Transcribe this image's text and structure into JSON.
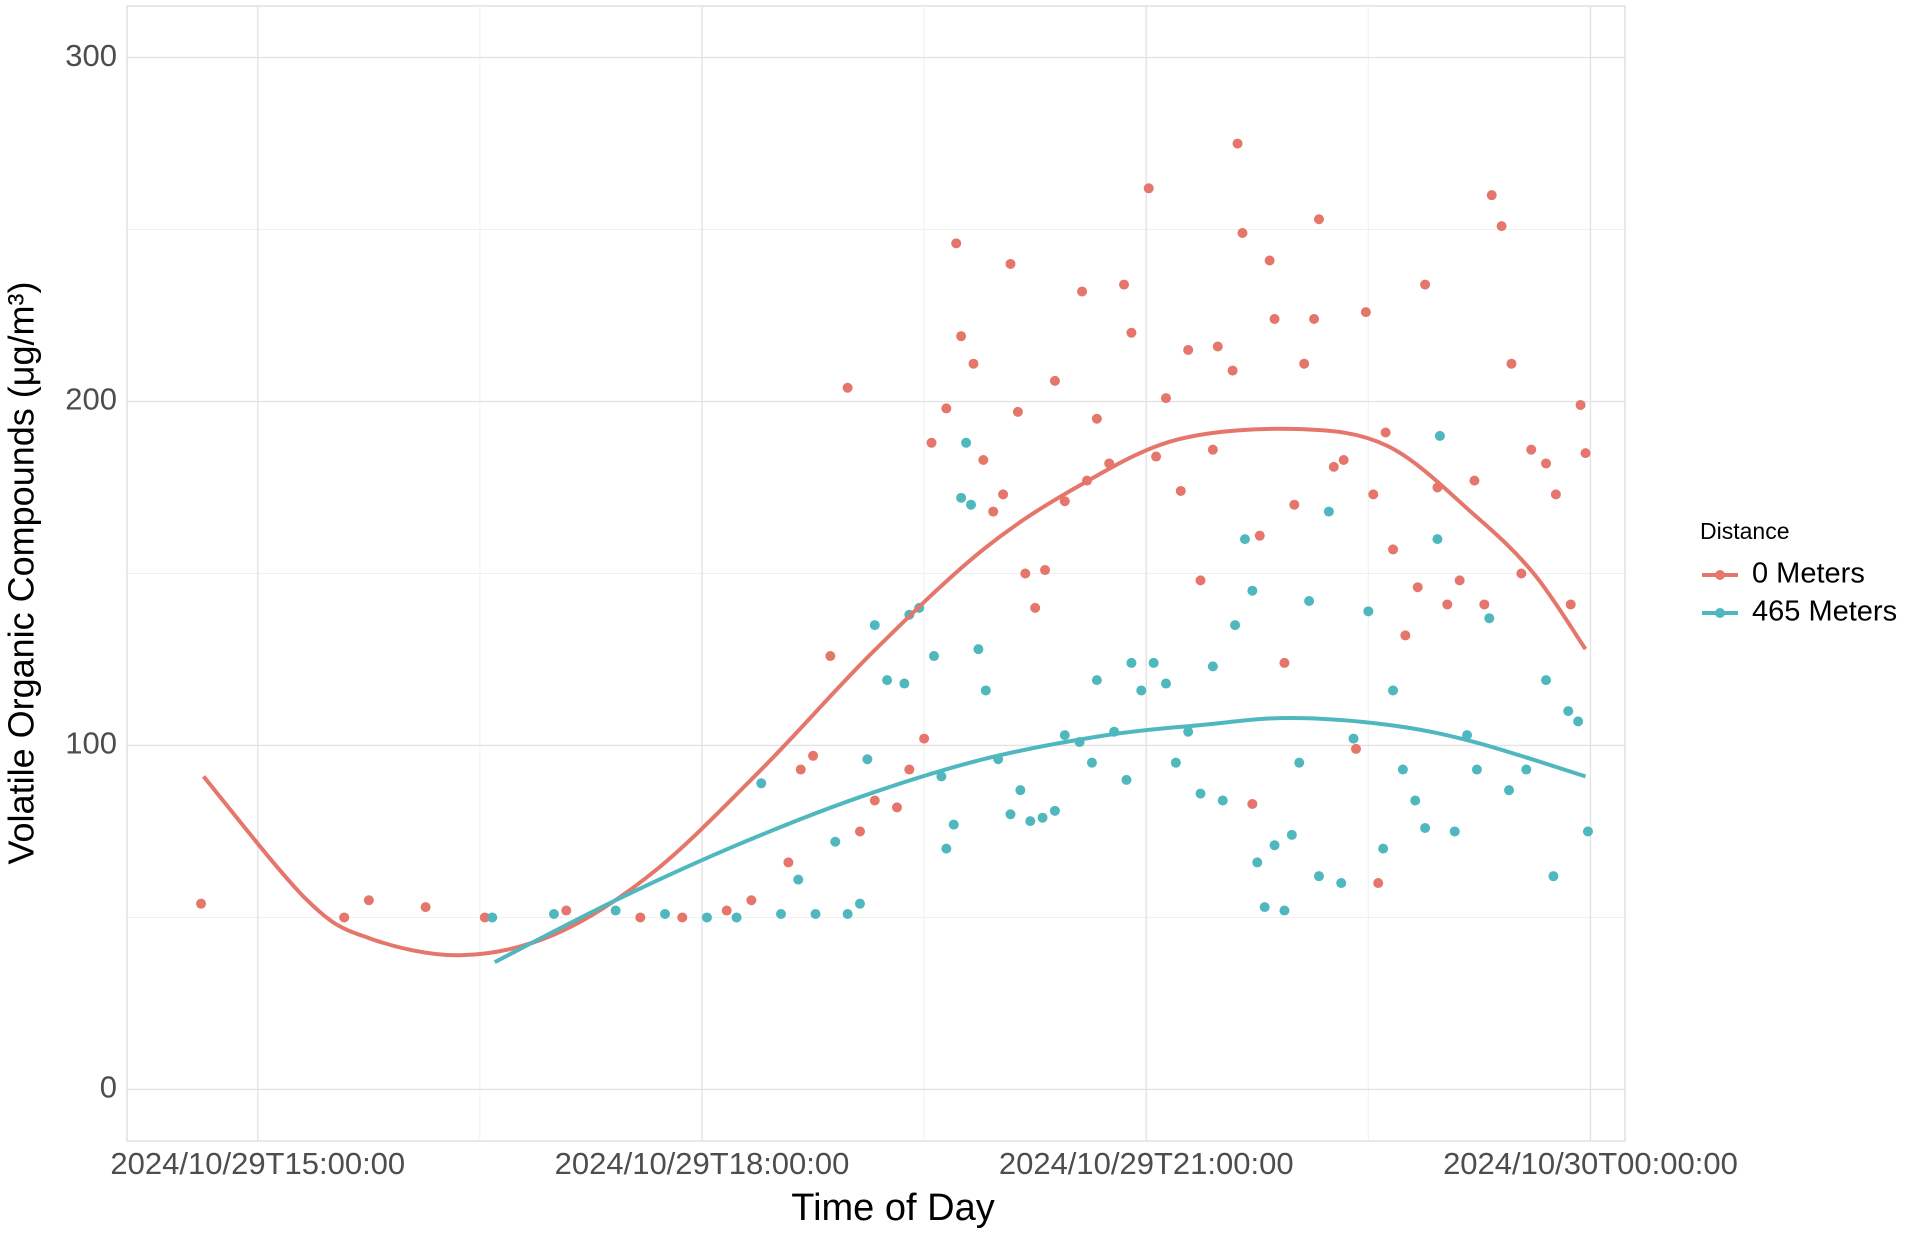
{
  "chart_data": {
    "type": "scatter",
    "x_label": "Time of Day",
    "y_label": "Volatile Organic Compounds (μg/m³)",
    "legend_title": "Distance",
    "legend_position": "right",
    "grid": true,
    "xlim": [
      "2024-10-29T14:07",
      "2024-10-30T00:14"
    ],
    "xticks": [
      {
        "value": "2024-10-29T15:00",
        "label": "2024/10/29T15:00:00"
      },
      {
        "value": "2024-10-29T18:00",
        "label": "2024/10/29T18:00:00"
      },
      {
        "value": "2024-10-29T21:00",
        "label": "2024/10/29T21:00:00"
      },
      {
        "value": "2024-10-30T00:00",
        "label": "2024/10/30T00:00:00"
      }
    ],
    "ylim": [
      -15,
      315
    ],
    "yticks": [
      0,
      100,
      200,
      300
    ],
    "series": [
      {
        "name": "0 Meters",
        "color": "#e5766b",
        "x": [
          "2024-10-29T14:37",
          "2024-10-29T15:35",
          "2024-10-29T15:45",
          "2024-10-29T16:08",
          "2024-10-29T16:32",
          "2024-10-29T17:05",
          "2024-10-29T17:35",
          "2024-10-29T17:52",
          "2024-10-29T18:10",
          "2024-10-29T18:20",
          "2024-10-29T18:35",
          "2024-10-29T18:40",
          "2024-10-29T18:45",
          "2024-10-29T18:52",
          "2024-10-29T18:59",
          "2024-10-29T19:04",
          "2024-10-29T19:10",
          "2024-10-29T19:19",
          "2024-10-29T19:24",
          "2024-10-29T19:30",
          "2024-10-29T19:33",
          "2024-10-29T19:39",
          "2024-10-29T19:43",
          "2024-10-29T19:45",
          "2024-10-29T19:50",
          "2024-10-29T19:54",
          "2024-10-29T19:58",
          "2024-10-29T20:02",
          "2024-10-29T20:05",
          "2024-10-29T20:08",
          "2024-10-29T20:11",
          "2024-10-29T20:15",
          "2024-10-29T20:19",
          "2024-10-29T20:23",
          "2024-10-29T20:27",
          "2024-10-29T20:34",
          "2024-10-29T20:36",
          "2024-10-29T20:40",
          "2024-10-29T20:45",
          "2024-10-29T20:51",
          "2024-10-29T20:54",
          "2024-10-29T21:01",
          "2024-10-29T21:04",
          "2024-10-29T21:08",
          "2024-10-29T21:14",
          "2024-10-29T21:17",
          "2024-10-29T21:22",
          "2024-10-29T21:27",
          "2024-10-29T21:29",
          "2024-10-29T21:35",
          "2024-10-29T21:37",
          "2024-10-29T21:39",
          "2024-10-29T21:43",
          "2024-10-29T21:46",
          "2024-10-29T21:50",
          "2024-10-29T21:52",
          "2024-10-29T21:56",
          "2024-10-29T22:00",
          "2024-10-29T22:04",
          "2024-10-29T22:08",
          "2024-10-29T22:10",
          "2024-10-29T22:16",
          "2024-10-29T22:20",
          "2024-10-29T22:25",
          "2024-10-29T22:29",
          "2024-10-29T22:32",
          "2024-10-29T22:34",
          "2024-10-29T22:37",
          "2024-10-29T22:40",
          "2024-10-29T22:45",
          "2024-10-29T22:50",
          "2024-10-29T22:53",
          "2024-10-29T22:58",
          "2024-10-29T23:02",
          "2024-10-29T23:07",
          "2024-10-29T23:13",
          "2024-10-29T23:17",
          "2024-10-29T23:20",
          "2024-10-29T23:24",
          "2024-10-29T23:28",
          "2024-10-29T23:32",
          "2024-10-29T23:36",
          "2024-10-29T23:42",
          "2024-10-29T23:46",
          "2024-10-29T23:52",
          "2024-10-29T23:56",
          "2024-10-29T23:58"
        ],
        "values": [
          54,
          50,
          55,
          53,
          50,
          52,
          50,
          50,
          52,
          55,
          66,
          93,
          97,
          126,
          204,
          75,
          84,
          82,
          93,
          102,
          188,
          198,
          246,
          219,
          211,
          183,
          168,
          173,
          240,
          197,
          150,
          140,
          151,
          206,
          171,
          232,
          177,
          195,
          182,
          234,
          220,
          262,
          184,
          201,
          174,
          215,
          148,
          186,
          216,
          209,
          275,
          249,
          83,
          161,
          241,
          224,
          124,
          170,
          211,
          224,
          253,
          181,
          183,
          99,
          226,
          173,
          60,
          191,
          157,
          132,
          146,
          234,
          175,
          141,
          148,
          177,
          141,
          260,
          251,
          211,
          150,
          186,
          182,
          173,
          141,
          199,
          185
        ],
        "smooth": {
          "x": [
            "2024-10-29T14:38",
            "2024-10-29T15:20",
            "2024-10-29T15:45",
            "2024-10-29T16:22",
            "2024-10-29T17:00",
            "2024-10-29T17:40",
            "2024-10-29T18:24",
            "2024-10-29T19:09",
            "2024-10-29T19:54",
            "2024-10-29T20:34",
            "2024-10-29T21:13",
            "2024-10-29T22:01",
            "2024-10-29T22:38",
            "2024-10-29T23:13",
            "2024-10-29T23:37",
            "2024-10-29T23:58"
          ],
          "values": [
            91,
            55,
            44,
            39,
            45,
            63,
            93,
            127,
            157,
            176,
            189,
            192,
            187,
            167,
            150,
            128
          ]
        }
      },
      {
        "name": "465 Meters",
        "color": "#4fb8be",
        "x": [
          "2024-10-29T16:35",
          "2024-10-29T17:00",
          "2024-10-29T17:25",
          "2024-10-29T17:45",
          "2024-10-29T18:02",
          "2024-10-29T18:14",
          "2024-10-29T18:24",
          "2024-10-29T18:32",
          "2024-10-29T18:39",
          "2024-10-29T18:46",
          "2024-10-29T18:54",
          "2024-10-29T18:59",
          "2024-10-29T19:04",
          "2024-10-29T19:07",
          "2024-10-29T19:10",
          "2024-10-29T19:15",
          "2024-10-29T19:22",
          "2024-10-29T19:24",
          "2024-10-29T19:28",
          "2024-10-29T19:34",
          "2024-10-29T19:37",
          "2024-10-29T19:39",
          "2024-10-29T19:42",
          "2024-10-29T19:45",
          "2024-10-29T19:47",
          "2024-10-29T19:49",
          "2024-10-29T19:52",
          "2024-10-29T19:55",
          "2024-10-29T20:00",
          "2024-10-29T20:05",
          "2024-10-29T20:09",
          "2024-10-29T20:13",
          "2024-10-29T20:18",
          "2024-10-29T20:23",
          "2024-10-29T20:27",
          "2024-10-29T20:33",
          "2024-10-29T20:38",
          "2024-10-29T20:40",
          "2024-10-29T20:47",
          "2024-10-29T20:52",
          "2024-10-29T20:54",
          "2024-10-29T20:58",
          "2024-10-29T21:03",
          "2024-10-29T21:08",
          "2024-10-29T21:12",
          "2024-10-29T21:17",
          "2024-10-29T21:22",
          "2024-10-29T21:27",
          "2024-10-29T21:31",
          "2024-10-29T21:36",
          "2024-10-29T21:40",
          "2024-10-29T21:43",
          "2024-10-29T21:45",
          "2024-10-29T21:48",
          "2024-10-29T21:52",
          "2024-10-29T21:56",
          "2024-10-29T21:59",
          "2024-10-29T22:02",
          "2024-10-29T22:06",
          "2024-10-29T22:10",
          "2024-10-29T22:14",
          "2024-10-29T22:19",
          "2024-10-29T22:24",
          "2024-10-29T22:30",
          "2024-10-29T22:36",
          "2024-10-29T22:40",
          "2024-10-29T22:44",
          "2024-10-29T22:49",
          "2024-10-29T22:53",
          "2024-10-29T22:58",
          "2024-10-29T22:59",
          "2024-10-29T23:05",
          "2024-10-29T23:10",
          "2024-10-29T23:14",
          "2024-10-29T23:19",
          "2024-10-29T23:27",
          "2024-10-29T23:34",
          "2024-10-29T23:42",
          "2024-10-29T23:45",
          "2024-10-29T23:51",
          "2024-10-29T23:55",
          "2024-10-29T23:59"
        ],
        "values": [
          50,
          51,
          52,
          51,
          50,
          50,
          89,
          51,
          61,
          51,
          72,
          51,
          54,
          96,
          135,
          119,
          118,
          138,
          140,
          126,
          91,
          70,
          77,
          172,
          188,
          170,
          128,
          116,
          96,
          80,
          87,
          78,
          79,
          81,
          103,
          101,
          95,
          119,
          104,
          90,
          124,
          116,
          124,
          118,
          95,
          104,
          86,
          123,
          84,
          135,
          160,
          145,
          66,
          53,
          71,
          52,
          74,
          95,
          142,
          62,
          168,
          60,
          102,
          139,
          70,
          116,
          93,
          84,
          76,
          160,
          190,
          75,
          103,
          93,
          137,
          87,
          93,
          119,
          62,
          110,
          107,
          75
        ],
        "smooth": {
          "x": [
            "2024-10-29T16:36",
            "2024-10-29T17:25",
            "2024-10-29T18:14",
            "2024-10-29T19:04",
            "2024-10-29T19:54",
            "2024-10-29T20:44",
            "2024-10-29T21:23",
            "2024-10-29T21:58",
            "2024-10-29T22:38",
            "2024-10-29T23:13",
            "2024-10-29T23:58"
          ],
          "values": [
            37,
            55,
            71,
            85,
            96,
            103,
            106,
            108,
            106,
            101,
            91
          ]
        }
      }
    ]
  }
}
